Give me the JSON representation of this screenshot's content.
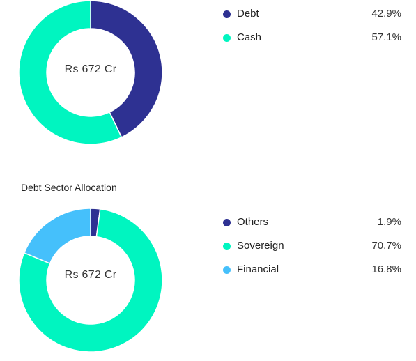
{
  "chart_data": [
    {
      "type": "pie",
      "title": "",
      "center_label": "Rs 672 Cr",
      "donut": true,
      "legend_position": "right",
      "series": [
        {
          "name": "Debt",
          "value": 42.9,
          "label": "42.9%",
          "color": "#2e3192"
        },
        {
          "name": "Cash",
          "value": 57.1,
          "label": "57.1%",
          "color": "#00f5c0"
        }
      ]
    },
    {
      "type": "pie",
      "title": "Debt Sector Allocation",
      "center_label": "Rs 672 Cr",
      "donut": true,
      "legend_position": "right",
      "series": [
        {
          "name": "Others",
          "value": 1.9,
          "label": "1.9%",
          "color": "#2e3192"
        },
        {
          "name": "Sovereign",
          "value": 70.7,
          "label": "70.7%",
          "color": "#00f5c0"
        },
        {
          "name": "Financial",
          "value": 16.8,
          "label": "16.8%",
          "color": "#45c0fb"
        }
      ]
    }
  ]
}
